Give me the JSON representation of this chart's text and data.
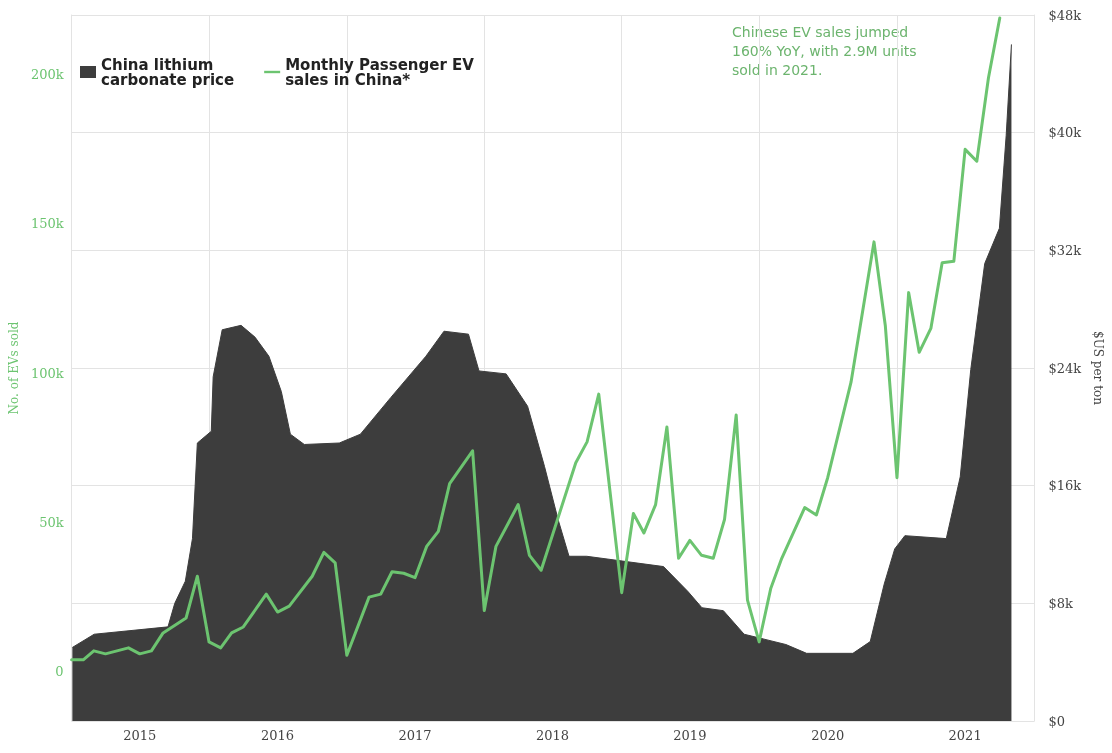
{
  "chart_data": {
    "type": "line",
    "ylabel": "No. of EVs sold",
    "y2label": "$US per ton",
    "annotations": [
      "Chinese EV sales jumped 160% YoY, with 2.9M units sold in 2021."
    ],
    "xlim": [
      "2015-01",
      "2022-01"
    ],
    "xticks": [
      {
        "value": "2015-07",
        "label": "2015"
      },
      {
        "value": "2016-07",
        "label": "2016"
      },
      {
        "value": "2017-07",
        "label": "2017"
      },
      {
        "value": "2018-07",
        "label": "2018"
      },
      {
        "value": "2019-07",
        "label": "2019"
      },
      {
        "value": "2020-07",
        "label": "2020"
      },
      {
        "value": "2021-07",
        "label": "2021"
      },
      {
        "value": "2016-01",
        "label": null
      },
      {
        "value": "2017-01",
        "label": null
      },
      {
        "value": "2018-01",
        "label": null
      },
      {
        "value": "2019-01",
        "label": null
      },
      {
        "value": "2020-01",
        "label": null
      },
      {
        "value": "2021-01",
        "label": null
      }
    ],
    "ylim": [
      -16500,
      220000
    ],
    "yticks": [
      0,
      {
        "value": 50000,
        "label": "50k"
      },
      {
        "value": 100000,
        "label": "100k"
      },
      {
        "value": 150000,
        "label": "150k"
      },
      {
        "value": 200000,
        "label": "200k"
      }
    ],
    "y2lim": [
      0,
      48000
    ],
    "y2ticks": [
      {
        "value": 0,
        "label": "$0"
      },
      {
        "value": 8000,
        "label": "$8k"
      },
      {
        "value": 16000,
        "label": "$16k"
      },
      {
        "value": 24000,
        "label": "$24k"
      },
      {
        "value": 32000,
        "label": "$32k"
      },
      {
        "value": 40000,
        "label": "$40k"
      },
      {
        "value": 48000,
        "label": "$48k"
      }
    ],
    "grid": true,
    "legend": "top left",
    "marker": "none",
    "line_style": "solid",
    "series": [
      {
        "name": "China lithium carbonate price",
        "type": "area",
        "axis": "y2",
        "color": "#3d3d3d",
        "x": [
          "2015-01-03",
          "2015-03-02",
          "2015-09-14",
          "2015-10-02",
          "2015-10-30",
          "2015-11-18",
          "2015-12-01",
          "2016-01-07",
          "2016-01-12",
          "2016-02-05",
          "2016-03-26",
          "2016-05-02",
          "2016-06-08",
          "2016-07-11",
          "2016-08-04",
          "2016-09-10",
          "2016-12-12",
          "2017-02-06",
          "2017-04-28",
          "2017-07-30",
          "2017-09-16",
          "2017-11-20",
          "2017-12-18",
          "2018-02-28",
          "2018-04-26",
          "2018-06-10",
          "2018-07-16",
          "2018-08-14",
          "2018-09-30",
          "2019-04-22",
          "2019-06-26",
          "2019-08-02",
          "2019-09-28",
          "2019-11-22",
          "2020-03-12",
          "2020-05-06",
          "2020-09-06",
          "2020-10-22",
          "2020-11-28",
          "2020-12-26",
          "2021-01-22",
          "2021-05-12",
          "2021-06-18",
          "2021-07-16",
          "2021-08-22",
          "2021-09-30",
          "2021-10-18",
          "2021-11-01"
        ],
        "values": [
          5000,
          5900,
          6400,
          8000,
          9500,
          12400,
          18900,
          19700,
          23400,
          26600,
          26900,
          26100,
          24800,
          22400,
          19500,
          18800,
          18900,
          19500,
          22000,
          24800,
          26500,
          26300,
          23800,
          23600,
          21400,
          17300,
          13700,
          11200,
          11200,
          10500,
          8800,
          7700,
          7500,
          5900,
          5200,
          4600,
          4600,
          5400,
          9300,
          11700,
          12600,
          12400,
          16600,
          23900,
          31100,
          33500,
          39800,
          46000
        ]
      },
      {
        "name": "Monthly Passenger EV sales in China*",
        "type": "line",
        "color": "#6cc470",
        "x": [
          "2015-01",
          "2015-02",
          "2015-03",
          "2015-04",
          "2015-06",
          "2015-07",
          "2015-08",
          "2015-09",
          "2015-11",
          "2015-12",
          "2016-01",
          "2016-02",
          "2016-03",
          "2016-04",
          "2016-06",
          "2016-07",
          "2016-08",
          "2016-10",
          "2016-11",
          "2016-12",
          "2017-01",
          "2017-03",
          "2017-04",
          "2017-05",
          "2017-06",
          "2017-07",
          "2017-08",
          "2017-09",
          "2017-10",
          "2017-12",
          "2018-01",
          "2018-02",
          "2018-04",
          "2018-05",
          "2018-06",
          "2018-09",
          "2018-10",
          "2018-11",
          "2019-01",
          "2019-02",
          "2019-03",
          "2019-04",
          "2019-05",
          "2019-06",
          "2019-07",
          "2019-08",
          "2019-09",
          "2019-10",
          "2019-11",
          "2019-12",
          "2020-01",
          "2020-02",
          "2020-03",
          "2020-05",
          "2020-06",
          "2020-07",
          "2020-09",
          "2020-11",
          "2020-12",
          "2021-01",
          "2021-02",
          "2021-03",
          "2021-04",
          "2021-05",
          "2021-06",
          "2021-07",
          "2021-08",
          "2021-09",
          "2021-10"
        ],
        "values": [
          4000,
          4000,
          7000,
          6000,
          8000,
          6000,
          7000,
          13000,
          18000,
          32000,
          10000,
          8000,
          13000,
          15000,
          26000,
          20000,
          22000,
          32000,
          40000,
          36500,
          5500,
          25000,
          26000,
          33500,
          33000,
          31500,
          42000,
          47000,
          63000,
          74000,
          20500,
          42000,
          56000,
          39000,
          34000,
          70000,
          77000,
          93000,
          26500,
          53000,
          46500,
          56000,
          82000,
          38000,
          44000,
          39000,
          38000,
          51000,
          86000,
          24000,
          10000,
          28000,
          38000,
          55000,
          52500,
          65000,
          97000,
          144000,
          116000,
          65000,
          127000,
          107000,
          115000,
          137000,
          137500,
          175000,
          171000,
          199000,
          219000
        ]
      }
    ]
  }
}
